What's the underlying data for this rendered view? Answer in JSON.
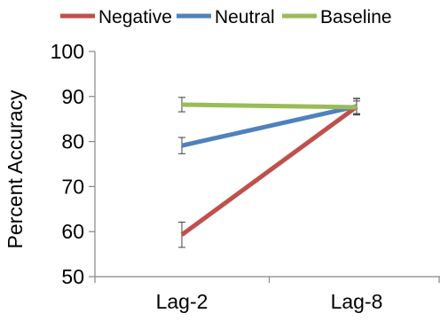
{
  "chart_data": {
    "type": "line",
    "title": "",
    "xlabel": "",
    "ylabel": "Percent Accuracy",
    "categories": [
      "Lag-2",
      "Lag-8"
    ],
    "ylim": [
      50,
      100
    ],
    "yticks": [
      50,
      60,
      70,
      80,
      90,
      100
    ],
    "grid": false,
    "legend_position": "top",
    "error_bars": true,
    "series": [
      {
        "name": "Negative",
        "color": "#c0504d",
        "values": [
          59.3,
          87.7
        ],
        "errors": [
          2.8,
          1.8
        ]
      },
      {
        "name": "Neutral",
        "color": "#4f81bd",
        "values": [
          79.1,
          87.8
        ],
        "errors": [
          1.8,
          1.8
        ]
      },
      {
        "name": "Baseline",
        "color": "#9bbb59",
        "values": [
          88.2,
          87.6
        ],
        "errors": [
          1.6,
          1.4
        ]
      }
    ]
  }
}
